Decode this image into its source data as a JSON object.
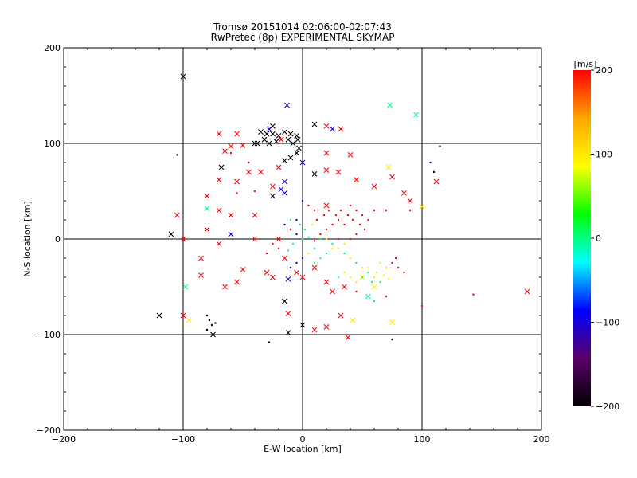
{
  "chart_data": {
    "type": "scatter",
    "title": "Tromsø 20151014 02:06:00-02:07:43",
    "subtitle": "RwPretec (8p) EXPERIMENTAL SKYMAP",
    "xlabel": "E-W location [km]",
    "ylabel": "N-S location [km]",
    "xlim": [
      -200,
      200
    ],
    "ylim": [
      -200,
      200
    ],
    "x_ticks": [
      "-200",
      "-100",
      "0",
      "100",
      "200"
    ],
    "y_ticks": [
      "-200",
      "-100",
      "0",
      "100",
      "200"
    ],
    "grid_lines": [
      -100,
      0,
      100
    ],
    "colorbar": {
      "unit_label": "[m/s]",
      "range": [
        -200,
        200
      ],
      "ticks": [
        "-200",
        "-100",
        "0",
        "100",
        "200"
      ],
      "colormap": [
        "#000000",
        "#5a006a",
        "#0000ff",
        "#00ffff",
        "#00ff00",
        "#ffff00",
        "#ffa500",
        "#ff0000"
      ]
    },
    "series": [
      {
        "marker": "x",
        "points": [
          [
            -100,
            170,
            -200
          ],
          [
            -13,
            140,
            -100
          ],
          [
            73,
            140,
            0
          ],
          [
            95,
            130,
            0
          ],
          [
            -25,
            118,
            -200
          ],
          [
            -28,
            115,
            -100
          ],
          [
            -35,
            112,
            -200
          ],
          [
            -30,
            110,
            -200
          ],
          [
            -25,
            110,
            -200
          ],
          [
            -20,
            108,
            -200
          ],
          [
            -15,
            112,
            -200
          ],
          [
            -10,
            110,
            -200
          ],
          [
            -5,
            108,
            -200
          ],
          [
            -18,
            104,
            200
          ],
          [
            -32,
            104,
            -200
          ],
          [
            -28,
            100,
            -200
          ],
          [
            -22,
            102,
            -200
          ],
          [
            -12,
            104,
            -200
          ],
          [
            -8,
            100,
            -200
          ],
          [
            -4,
            104,
            -200
          ],
          [
            -38,
            100,
            -200
          ],
          [
            -3,
            95,
            -200
          ],
          [
            10,
            120,
            -200
          ],
          [
            20,
            118,
            200
          ],
          [
            32,
            115,
            200
          ],
          [
            25,
            115,
            -100
          ],
          [
            -70,
            110,
            200
          ],
          [
            -55,
            110,
            200
          ],
          [
            -50,
            98,
            200
          ],
          [
            -60,
            97,
            200
          ],
          [
            -40,
            100,
            -200
          ],
          [
            -5,
            90,
            -200
          ],
          [
            -10,
            85,
            -200
          ],
          [
            -15,
            82,
            -200
          ],
          [
            -65,
            92,
            200
          ],
          [
            -68,
            75,
            -200
          ],
          [
            0,
            80,
            -100
          ],
          [
            20,
            90,
            200
          ],
          [
            40,
            88,
            200
          ],
          [
            -35,
            70,
            200
          ],
          [
            -20,
            75,
            200
          ],
          [
            10,
            68,
            -200
          ],
          [
            -45,
            70,
            200
          ],
          [
            -25,
            55,
            200
          ],
          [
            -15,
            60,
            -100
          ],
          [
            -18,
            52,
            -100
          ],
          [
            -15,
            48,
            -100
          ],
          [
            -25,
            45,
            -200
          ],
          [
            -70,
            62,
            200
          ],
          [
            -55,
            60,
            200
          ],
          [
            20,
            72,
            200
          ],
          [
            30,
            70,
            200
          ],
          [
            45,
            62,
            200
          ],
          [
            60,
            55,
            200
          ],
          [
            72,
            75,
            100
          ],
          [
            75,
            65,
            200
          ],
          [
            85,
            48,
            200
          ],
          [
            90,
            40,
            200
          ],
          [
            100,
            34,
            100
          ],
          [
            112,
            60,
            200
          ],
          [
            20,
            35,
            200
          ],
          [
            -105,
            25,
            200
          ],
          [
            -80,
            32,
            0
          ],
          [
            -60,
            25,
            200
          ],
          [
            -40,
            25,
            200
          ],
          [
            -110,
            5,
            -200
          ],
          [
            -100,
            0,
            200
          ],
          [
            -80,
            10,
            200
          ],
          [
            -60,
            5,
            -100
          ],
          [
            -40,
            0,
            200
          ],
          [
            -20,
            0,
            200
          ],
          [
            -85,
            -20,
            200
          ],
          [
            -70,
            -5,
            200
          ],
          [
            -85,
            -38,
            200
          ],
          [
            -98,
            -50,
            0
          ],
          [
            -65,
            -50,
            200
          ],
          [
            -55,
            -45,
            200
          ],
          [
            -50,
            -32,
            200
          ],
          [
            -30,
            -35,
            200
          ],
          [
            -25,
            -40,
            200
          ],
          [
            -15,
            -20,
            200
          ],
          [
            -12,
            -42,
            -100
          ],
          [
            -5,
            -35,
            200
          ],
          [
            0,
            -40,
            200
          ],
          [
            10,
            -30,
            200
          ],
          [
            20,
            -45,
            200
          ],
          [
            25,
            -55,
            200
          ],
          [
            35,
            -50,
            200
          ],
          [
            -15,
            -65,
            -200
          ],
          [
            -12,
            -78,
            200
          ],
          [
            -100,
            -80,
            200
          ],
          [
            -95,
            -85,
            100
          ],
          [
            -120,
            -80,
            -200
          ],
          [
            -75,
            -100,
            -200
          ],
          [
            -12,
            -98,
            -200
          ],
          [
            0,
            -90,
            -200
          ],
          [
            10,
            -95,
            200
          ],
          [
            20,
            -92,
            200
          ],
          [
            32,
            -80,
            200
          ],
          [
            42,
            -85,
            100
          ],
          [
            38,
            -103,
            200
          ],
          [
            75,
            -87,
            100
          ],
          [
            55,
            -60,
            0
          ],
          [
            188,
            -55,
            200
          ],
          [
            50,
            -40,
            100
          ],
          [
            60,
            -50,
            100
          ],
          [
            -80,
            45,
            200
          ],
          [
            -70,
            30,
            200
          ]
        ]
      },
      {
        "marker": "dot",
        "points": [
          [
            -105,
            88,
            -200
          ],
          [
            -80,
            -80,
            -200
          ],
          [
            -78,
            -85,
            -200
          ],
          [
            -76,
            -90,
            -200
          ],
          [
            -80,
            -95,
            -200
          ],
          [
            -73,
            -88,
            -200
          ],
          [
            -28,
            -108,
            -200
          ],
          [
            75,
            -105,
            -200
          ],
          [
            115,
            97,
            -200
          ],
          [
            107,
            80,
            -100
          ],
          [
            110,
            70,
            -200
          ],
          [
            -60,
            90,
            200
          ],
          [
            -45,
            80,
            200
          ],
          [
            -40,
            50,
            200
          ],
          [
            -55,
            48,
            200
          ],
          [
            60,
            30,
            200
          ],
          [
            70,
            30,
            200
          ],
          [
            90,
            30,
            200
          ],
          [
            -10,
            10,
            200
          ],
          [
            -5,
            5,
            -100
          ],
          [
            0,
            0,
            0
          ],
          [
            5,
            2,
            0
          ],
          [
            10,
            -2,
            200
          ],
          [
            15,
            5,
            200
          ],
          [
            20,
            0,
            100
          ],
          [
            25,
            -5,
            0
          ],
          [
            30,
            -10,
            100
          ],
          [
            35,
            -15,
            0
          ],
          [
            40,
            -20,
            100
          ],
          [
            45,
            -25,
            0
          ],
          [
            50,
            -30,
            100
          ],
          [
            55,
            -35,
            0
          ],
          [
            60,
            -40,
            100
          ],
          [
            65,
            -45,
            0
          ],
          [
            70,
            -30,
            100
          ],
          [
            75,
            -25,
            200
          ],
          [
            80,
            -30,
            200
          ],
          [
            85,
            -35,
            200
          ],
          [
            40,
            35,
            200
          ],
          [
            45,
            30,
            200
          ],
          [
            50,
            25,
            200
          ],
          [
            55,
            20,
            200
          ],
          [
            35,
            15,
            200
          ],
          [
            30,
            20,
            200
          ],
          [
            25,
            15,
            200
          ],
          [
            20,
            10,
            200
          ],
          [
            15,
            0,
            0
          ],
          [
            10,
            -10,
            0
          ],
          [
            5,
            -15,
            100
          ],
          [
            0,
            -20,
            -100
          ],
          [
            -5,
            -25,
            -100
          ],
          [
            -10,
            -30,
            -100
          ],
          [
            -20,
            -10,
            200
          ],
          [
            -25,
            -5,
            200
          ],
          [
            -30,
            -15,
            200
          ],
          [
            143,
            -58,
            200
          ],
          [
            100,
            -70,
            200
          ],
          [
            70,
            -60,
            200
          ],
          [
            60,
            -65,
            0
          ],
          [
            45,
            -55,
            200
          ],
          [
            0,
            40,
            -100
          ],
          [
            5,
            35,
            200
          ],
          [
            10,
            30,
            200
          ],
          [
            -5,
            20,
            -100
          ],
          [
            -2,
            15,
            0
          ],
          [
            2,
            10,
            0
          ],
          [
            8,
            15,
            100
          ],
          [
            12,
            20,
            200
          ],
          [
            18,
            25,
            200
          ],
          [
            22,
            30,
            200
          ],
          [
            28,
            25,
            200
          ],
          [
            32,
            30,
            200
          ],
          [
            38,
            25,
            200
          ],
          [
            42,
            20,
            200
          ],
          [
            48,
            15,
            200
          ],
          [
            52,
            10,
            200
          ],
          [
            45,
            5,
            200
          ],
          [
            40,
            0,
            200
          ],
          [
            35,
            -5,
            100
          ],
          [
            30,
            0,
            200
          ],
          [
            25,
            -10,
            100
          ],
          [
            20,
            -15,
            0
          ],
          [
            15,
            -20,
            0
          ],
          [
            10,
            -25,
            0
          ],
          [
            -15,
            15,
            -100
          ],
          [
            -10,
            20,
            0
          ],
          [
            -8,
            -5,
            0
          ],
          [
            -12,
            -12,
            0
          ],
          [
            30,
            -40,
            0
          ],
          [
            35,
            -35,
            100
          ],
          [
            40,
            -40,
            100
          ],
          [
            45,
            -45,
            100
          ],
          [
            50,
            -40,
            0
          ],
          [
            55,
            -30,
            100
          ],
          [
            62,
            -35,
            100
          ],
          [
            68,
            -38,
            100
          ],
          [
            72,
            -42,
            100
          ],
          [
            78,
            -20,
            200
          ],
          [
            65,
            -25,
            100
          ],
          [
            58,
            -45,
            0
          ]
        ]
      }
    ]
  }
}
